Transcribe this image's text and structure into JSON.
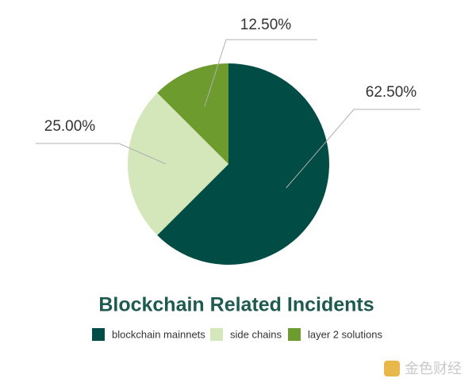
{
  "chart_data": {
    "type": "pie",
    "title": "Blockchain Related Incidents",
    "categories": [
      "blockchain mainnets",
      "side chains",
      "layer 2 solutions"
    ],
    "values": [
      62.5,
      25,
      12.5
    ],
    "value_labels": [
      "62.50%",
      "25.00%",
      "12.50%"
    ],
    "colors": [
      "#014c44",
      "#d3e7bb",
      "#6e9b2d"
    ]
  },
  "watermark": "金色财经"
}
